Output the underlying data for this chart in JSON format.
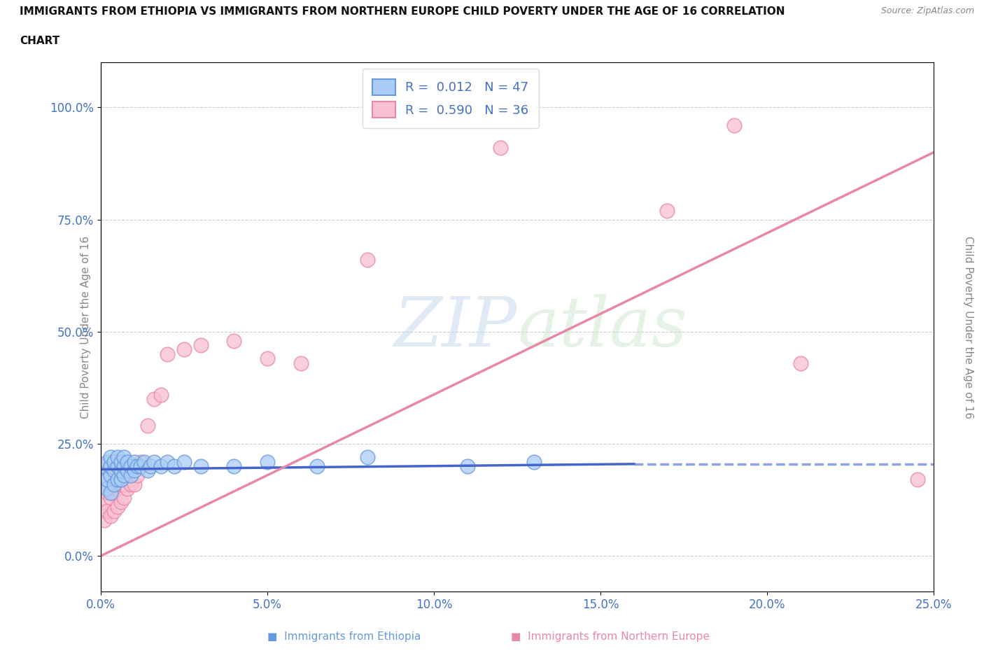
{
  "title_line1": "IMMIGRANTS FROM ETHIOPIA VS IMMIGRANTS FROM NORTHERN EUROPE CHILD POVERTY UNDER THE AGE OF 16 CORRELATION",
  "title_line2": "CHART",
  "source": "Source: ZipAtlas.com",
  "ylabel": "Child Poverty Under the Age of 16",
  "xlim": [
    0.0,
    0.25
  ],
  "ylim": [
    -0.08,
    1.1
  ],
  "yticks": [
    0.0,
    0.25,
    0.5,
    0.75,
    1.0
  ],
  "ytick_labels": [
    "0.0%",
    "25.0%",
    "50.0%",
    "75.0%",
    "100.0%"
  ],
  "xticks": [
    0.0,
    0.05,
    0.1,
    0.15,
    0.2,
    0.25
  ],
  "xtick_labels": [
    "0.0%",
    "5.0%",
    "10.0%",
    "15.0%",
    "20.0%",
    "25.0%"
  ],
  "R_ethiopia": 0.012,
  "N_ethiopia": 47,
  "R_northern": 0.59,
  "N_northern": 36,
  "ethiopia_color": "#aaccf5",
  "ethiopia_edge_color": "#6699dd",
  "northern_color": "#f8c0d0",
  "northern_edge_color": "#e888a8",
  "ethiopia_line_color": "#4466cc",
  "northern_line_color": "#e888a8",
  "watermark_top": "ZIP",
  "watermark_bot": "atlas",
  "ethiopia_x": [
    0.0,
    0.0,
    0.001,
    0.001,
    0.001,
    0.002,
    0.002,
    0.002,
    0.003,
    0.003,
    0.003,
    0.003,
    0.004,
    0.004,
    0.004,
    0.005,
    0.005,
    0.005,
    0.006,
    0.006,
    0.006,
    0.007,
    0.007,
    0.007,
    0.008,
    0.008,
    0.009,
    0.009,
    0.01,
    0.01,
    0.011,
    0.012,
    0.013,
    0.014,
    0.015,
    0.016,
    0.018,
    0.02,
    0.022,
    0.025,
    0.03,
    0.04,
    0.05,
    0.065,
    0.08,
    0.11,
    0.13
  ],
  "ethiopia_y": [
    0.17,
    0.19,
    0.16,
    0.18,
    0.2,
    0.15,
    0.17,
    0.21,
    0.14,
    0.18,
    0.2,
    0.22,
    0.16,
    0.19,
    0.21,
    0.17,
    0.2,
    0.22,
    0.17,
    0.19,
    0.21,
    0.18,
    0.2,
    0.22,
    0.19,
    0.21,
    0.18,
    0.2,
    0.19,
    0.21,
    0.2,
    0.2,
    0.21,
    0.19,
    0.2,
    0.21,
    0.2,
    0.21,
    0.2,
    0.21,
    0.2,
    0.2,
    0.21,
    0.2,
    0.22,
    0.2,
    0.21
  ],
  "northern_x": [
    0.0,
    0.0,
    0.001,
    0.001,
    0.002,
    0.002,
    0.003,
    0.003,
    0.004,
    0.004,
    0.005,
    0.005,
    0.006,
    0.006,
    0.007,
    0.007,
    0.008,
    0.009,
    0.01,
    0.011,
    0.012,
    0.014,
    0.016,
    0.018,
    0.02,
    0.025,
    0.03,
    0.04,
    0.05,
    0.06,
    0.08,
    0.12,
    0.17,
    0.19,
    0.21,
    0.245
  ],
  "northern_y": [
    0.1,
    0.15,
    0.08,
    0.12,
    0.1,
    0.14,
    0.09,
    0.13,
    0.1,
    0.14,
    0.11,
    0.15,
    0.12,
    0.16,
    0.13,
    0.16,
    0.15,
    0.16,
    0.16,
    0.18,
    0.21,
    0.29,
    0.35,
    0.36,
    0.45,
    0.46,
    0.47,
    0.48,
    0.44,
    0.43,
    0.66,
    0.91,
    0.77,
    0.96,
    0.43,
    0.17
  ],
  "eth_line_x": [
    0.0,
    0.16
  ],
  "eth_line_y": [
    0.193,
    0.205
  ],
  "nor_line_x": [
    0.0,
    0.25
  ],
  "nor_line_y": [
    0.0,
    0.9
  ],
  "bottom_label1": "Immigrants from Ethiopia",
  "bottom_label2": "Immigrants from Northern Europe",
  "bottom_color1": "#6699dd",
  "bottom_color2": "#e888a8"
}
